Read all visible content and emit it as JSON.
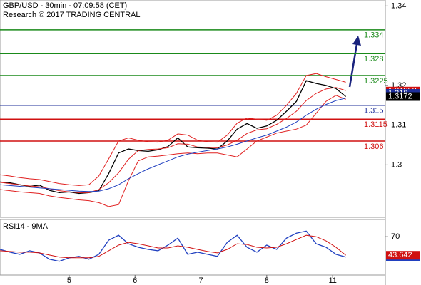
{
  "chart_data": [
    {
      "type": "line",
      "title": "GBP/USD - 30min - 07:09:58 (CET)",
      "subtitle": "Research © 2017 TRADING CENTRAL",
      "x": [
        0,
        3,
        6,
        9,
        12,
        15,
        18,
        21,
        24,
        27,
        30,
        33,
        36,
        39,
        42,
        45,
        48,
        51,
        54,
        57,
        60,
        63,
        66,
        69,
        72,
        75,
        78,
        81,
        84,
        87,
        90,
        93,
        96,
        99,
        102,
        105
      ],
      "series": [
        {
          "color": "#000000",
          "values": [
            1.2957,
            1.2955,
            1.295,
            1.2946,
            1.2949,
            1.2936,
            1.293,
            1.2932,
            1.2928,
            1.293,
            1.2935,
            1.2978,
            1.303,
            1.304,
            1.3036,
            1.3034,
            1.3038,
            1.3046,
            1.3068,
            1.3045,
            1.3043,
            1.3042,
            1.304,
            1.306,
            1.309,
            1.3104,
            1.3092,
            1.3098,
            1.3112,
            1.3135,
            1.316,
            1.3212,
            1.3205,
            1.32,
            1.3192,
            1.3172
          ]
        },
        {
          "color": "#e02020",
          "values": [
            1.2975,
            1.2972,
            1.2968,
            1.2965,
            1.2963,
            1.2958,
            1.2953,
            1.295,
            1.2948,
            1.295,
            1.2972,
            1.3015,
            1.306,
            1.3068,
            1.3062,
            1.3058,
            1.3057,
            1.3062,
            1.3078,
            1.3075,
            1.3062,
            1.3058,
            1.3057,
            1.3075,
            1.3105,
            1.3118,
            1.3115,
            1.3112,
            1.3125,
            1.315,
            1.318,
            1.3225,
            1.323,
            1.3222,
            1.3215,
            1.3208
          ]
        },
        {
          "color": "#e02020",
          "values": [
            1.2956,
            1.2953,
            1.295,
            1.2947,
            1.2945,
            1.294,
            1.2935,
            1.2932,
            1.293,
            1.293,
            1.2938,
            1.2955,
            1.298,
            1.3014,
            1.3036,
            1.3039,
            1.304,
            1.3043,
            1.3053,
            1.3052,
            1.3045,
            1.3044,
            1.3043,
            1.305,
            1.3062,
            1.3079,
            1.3088,
            1.3091,
            1.3102,
            1.3117,
            1.3135,
            1.3162,
            1.318,
            1.3191,
            1.3195,
            1.3187
          ]
        },
        {
          "color": "#e02020",
          "values": [
            1.2938,
            1.2935,
            1.2932,
            1.293,
            1.2928,
            1.2922,
            1.2918,
            1.2915,
            1.2912,
            1.291,
            1.2905,
            1.2895,
            1.29,
            1.296,
            1.301,
            1.302,
            1.3022,
            1.3025,
            1.3028,
            1.303,
            1.3028,
            1.303,
            1.303,
            1.3025,
            1.302,
            1.304,
            1.306,
            1.307,
            1.308,
            1.3085,
            1.309,
            1.31,
            1.313,
            1.316,
            1.3175,
            1.3165
          ]
        },
        {
          "color": "#2040c0",
          "values": [
            1.295,
            1.2948,
            1.2946,
            1.2944,
            1.2942,
            1.294,
            1.2938,
            1.2936,
            1.2934,
            1.2933,
            1.2934,
            1.294,
            1.295,
            1.2965,
            1.2978,
            1.299,
            1.3,
            1.301,
            1.302,
            1.3027,
            1.3032,
            1.3036,
            1.304,
            1.3045,
            1.3052,
            1.306,
            1.3068,
            1.3075,
            1.3085,
            1.3095,
            1.3108,
            1.3125,
            1.314,
            1.3152,
            1.3162,
            1.3168
          ]
        }
      ],
      "levels": [
        {
          "value": 1.334,
          "color": "#1a8a1a"
        },
        {
          "value": 1.328,
          "color": "#1a8a1a"
        },
        {
          "value": 1.3225,
          "color": "#1a8a1a"
        },
        {
          "value": 1.315,
          "color": "#1f2f9a"
        },
        {
          "value": 1.3115,
          "color": "#d01010"
        },
        {
          "value": 1.306,
          "color": "#d01010"
        }
      ],
      "markers": [
        {
          "value": 1.31858,
          "color": "#d01010"
        },
        {
          "value": 1.318,
          "color": "#1f2f9a"
        }
      ],
      "xlim": [
        0,
        117
      ],
      "ylim": [
        1.2868,
        1.3415
      ],
      "yticks": [
        1.34,
        1.32,
        1.31,
        1.3
      ]
    },
    {
      "type": "line",
      "title": "RSI14 - 9MA",
      "x": [
        0,
        3,
        6,
        9,
        12,
        15,
        18,
        21,
        24,
        27,
        30,
        33,
        36,
        39,
        42,
        45,
        48,
        51,
        54,
        57,
        60,
        63,
        66,
        69,
        72,
        75,
        78,
        81,
        84,
        87,
        90,
        93,
        96,
        99,
        102,
        105
      ],
      "series": [
        {
          "color": "#2040c0",
          "values": [
            52,
            48,
            45,
            50,
            47,
            38,
            35,
            40,
            42,
            38,
            45,
            65,
            72,
            60,
            55,
            52,
            50,
            58,
            68,
            45,
            48,
            45,
            42,
            62,
            72,
            55,
            48,
            58,
            52,
            68,
            75,
            78,
            60,
            55,
            45,
            41.0233
          ]
        },
        {
          "color": "#d01010",
          "values": [
            50,
            49,
            48,
            48,
            47,
            44,
            41,
            40,
            40,
            40,
            42,
            50,
            58,
            62,
            60,
            57,
            54,
            54,
            57,
            55,
            52,
            49,
            47,
            52,
            60,
            59,
            55,
            54,
            55,
            60,
            66,
            72,
            70,
            64,
            55,
            43.642
          ]
        }
      ],
      "xlim": [
        0,
        117
      ],
      "ylim": [
        15.5,
        94.5
      ],
      "yticks": [
        70
      ],
      "xticks": [
        {
          "value": 21,
          "label": "5"
        },
        {
          "value": 41,
          "label": "6"
        },
        {
          "value": 61,
          "label": "7"
        },
        {
          "value": 81,
          "label": "8"
        },
        {
          "value": 101,
          "label": "11"
        }
      ]
    }
  ]
}
